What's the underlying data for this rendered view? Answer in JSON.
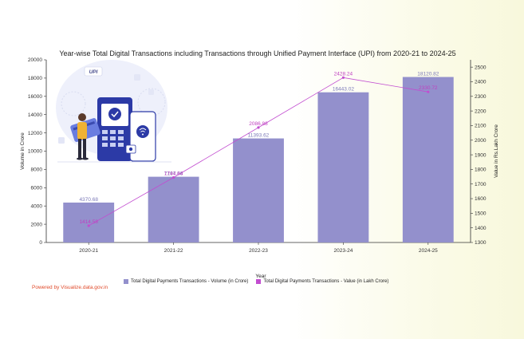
{
  "chart_data": {
    "type": "bar",
    "title": "Year-wise Total Digital Transactions including Transactions through Unified Payment Interface (UPI) from 2020-21 to 2024-25",
    "xlabel": "Year",
    "ylabel": "Volume in Crore",
    "y2label": "Value in Rs.Lakh Crore",
    "categories": [
      "2020-21",
      "2021-22",
      "2022-23",
      "2023-24",
      "2024-25"
    ],
    "ylim": [
      0,
      20000
    ],
    "yticks": [
      0,
      2000,
      4000,
      6000,
      8000,
      10000,
      12000,
      14000,
      16000,
      18000,
      20000
    ],
    "y2lim": [
      1300,
      2550
    ],
    "y2ticks": [
      1300,
      1400,
      1500,
      1600,
      1700,
      1800,
      1900,
      2000,
      2100,
      2200,
      2300,
      2400,
      2500
    ],
    "series": [
      {
        "name": "Total Digital Payments Transactions - Volume (in Crore)",
        "type": "bar",
        "color": "#9390cc",
        "values": [
          4370.68,
          7197.68,
          11393.62,
          16443.02,
          18120.82
        ]
      },
      {
        "name": "Total Digital Payments Transactions - Value (in Lakh Crore)",
        "type": "line",
        "axis": "right",
        "color": "#c24dd0",
        "values": [
          1414.58,
          1744.84,
          2086.88,
          2428.24,
          2330.72
        ]
      }
    ],
    "legend_position": "bottom"
  },
  "footer": {
    "powered_by": "Powered by Visualize.data.gov.in"
  },
  "illustration": {
    "icon": "upi-payment-illustration-icon",
    "logo_text": "UPI"
  }
}
